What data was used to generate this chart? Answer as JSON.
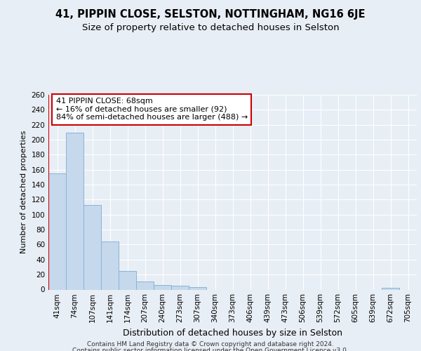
{
  "title1": "41, PIPPIN CLOSE, SELSTON, NOTTINGHAM, NG16 6JE",
  "title2": "Size of property relative to detached houses in Selston",
  "xlabel": "Distribution of detached houses by size in Selston",
  "ylabel": "Number of detached properties",
  "categories": [
    "41sqm",
    "74sqm",
    "107sqm",
    "141sqm",
    "174sqm",
    "207sqm",
    "240sqm",
    "273sqm",
    "307sqm",
    "340sqm",
    "373sqm",
    "406sqm",
    "439sqm",
    "473sqm",
    "506sqm",
    "539sqm",
    "572sqm",
    "605sqm",
    "639sqm",
    "672sqm",
    "705sqm"
  ],
  "values": [
    155,
    209,
    113,
    64,
    25,
    11,
    6,
    5,
    3,
    0,
    0,
    0,
    0,
    0,
    0,
    0,
    0,
    0,
    0,
    2,
    0
  ],
  "bar_color": "#c5d8ec",
  "bar_edge_color": "#8ab4d4",
  "vline_color": "#cc0000",
  "annotation_title": "41 PIPPIN CLOSE: 68sqm",
  "annotation_line1": "← 16% of detached houses are smaller (92)",
  "annotation_line2": "84% of semi-detached houses are larger (488) →",
  "annotation_box_facecolor": "#ffffff",
  "annotation_box_edgecolor": "#cc0000",
  "bg_color": "#e8eef5",
  "plot_bg_color": "#e8eef5",
  "grid_color": "#ffffff",
  "ylim": [
    0,
    260
  ],
  "yticks": [
    0,
    20,
    40,
    60,
    80,
    100,
    120,
    140,
    160,
    180,
    200,
    220,
    240,
    260
  ],
  "footer1": "Contains HM Land Registry data © Crown copyright and database right 2024.",
  "footer2": "Contains public sector information licensed under the Open Government Licence v3.0.",
  "title1_fontsize": 10.5,
  "title2_fontsize": 9.5,
  "xlabel_fontsize": 9,
  "ylabel_fontsize": 8,
  "tick_fontsize": 7.5,
  "annotation_fontsize": 8,
  "footer_fontsize": 6.5
}
